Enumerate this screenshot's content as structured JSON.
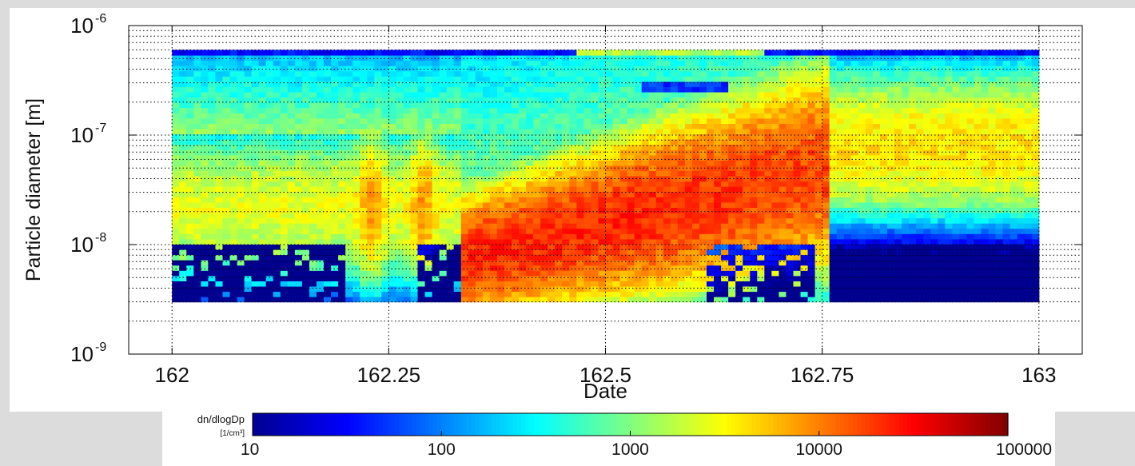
{
  "chart_data": {
    "type": "heatmap",
    "title": "",
    "xlabel": "Date",
    "ylabel": "Particle diameter [m]",
    "x_scale": "linear",
    "y_scale": "log",
    "xlim": [
      161.95,
      163.05
    ],
    "ylim": [
      1e-09,
      1e-06
    ],
    "x_ticks": [
      {
        "value": 162,
        "label": "162"
      },
      {
        "value": 162.25,
        "label": "162.25"
      },
      {
        "value": 162.5,
        "label": "162.5"
      },
      {
        "value": 162.75,
        "label": "162.75"
      },
      {
        "value": 163,
        "label": "163"
      }
    ],
    "y_ticks": [
      {
        "value": 1e-09,
        "base": "10",
        "exp": "-9"
      },
      {
        "value": 1e-08,
        "base": "10",
        "exp": "-8"
      },
      {
        "value": 1e-07,
        "base": "10",
        "exp": "-7"
      },
      {
        "value": 1e-06,
        "base": "10",
        "exp": "-6"
      }
    ],
    "grid": true,
    "data_x_range": [
      162,
      163
    ],
    "data_y_range": [
      3e-09,
      6e-07
    ],
    "colorbar": {
      "label": "dn/dlogDp",
      "unit": "[1/cm³]",
      "scale": "log",
      "ticks": [
        "10",
        "100",
        "1000",
        "10000",
        "100000"
      ],
      "range": [
        10,
        100000
      ],
      "colormap": [
        "#00008f",
        "#0000ff",
        "#0080ff",
        "#00ffff",
        "#80ff80",
        "#ffff00",
        "#ff8000",
        "#ff0000",
        "#800000"
      ]
    }
  }
}
